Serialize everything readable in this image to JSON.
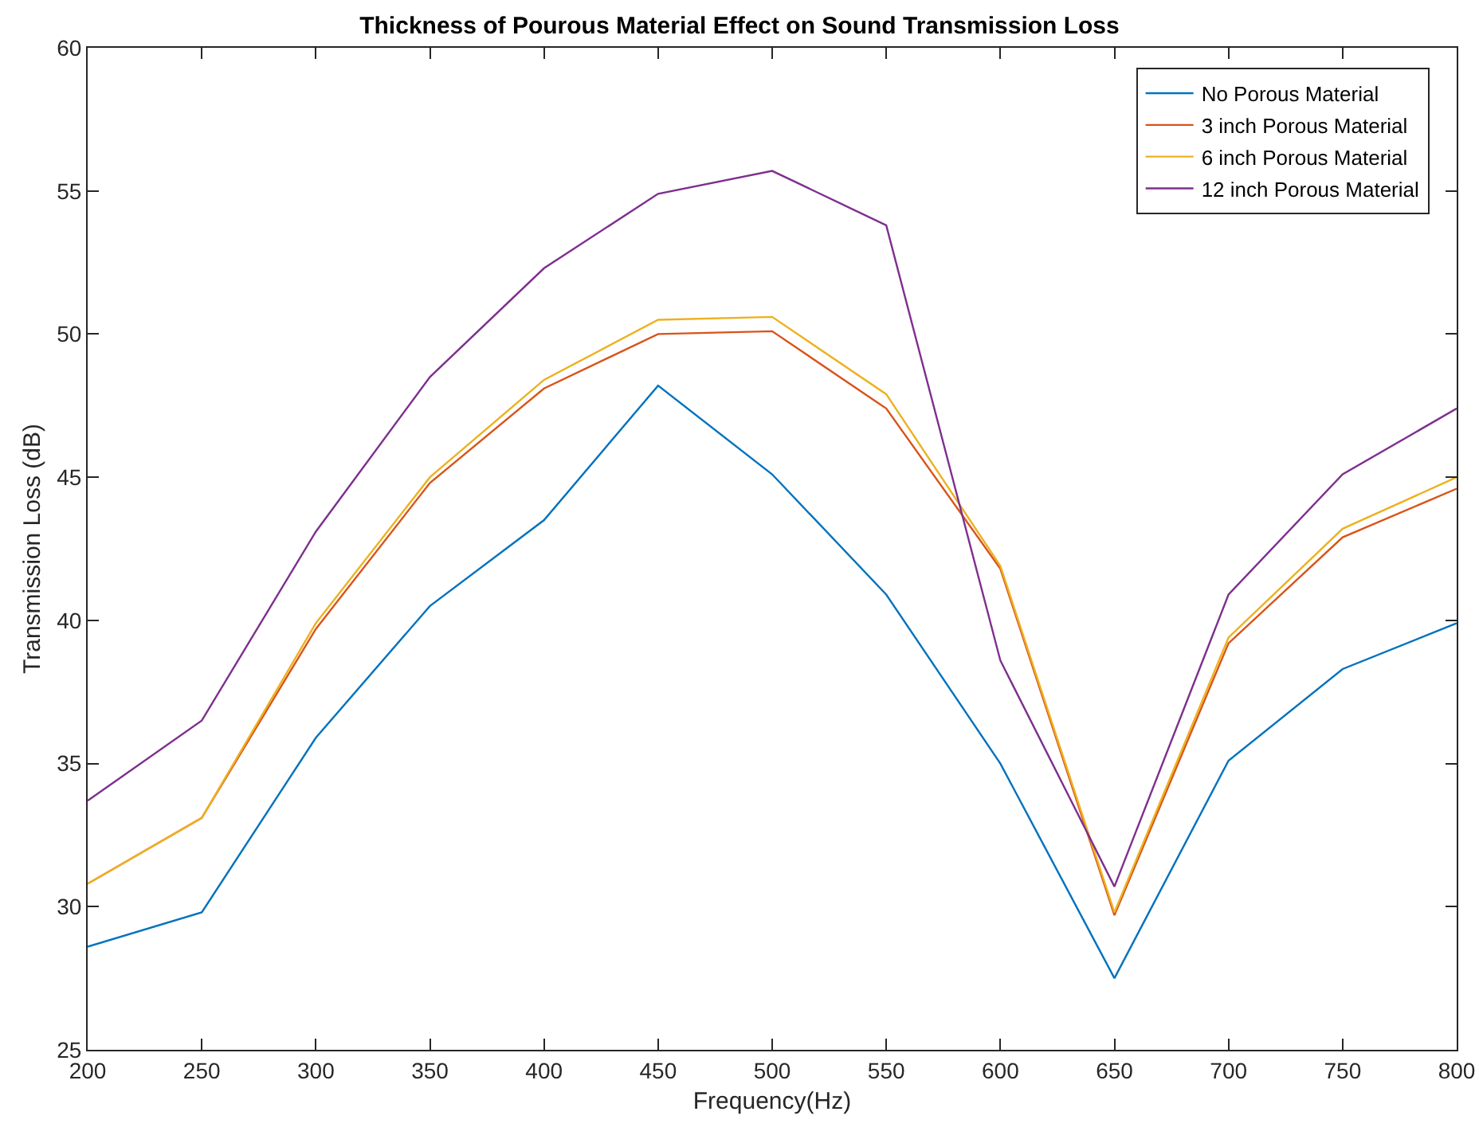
{
  "chart_data": {
    "type": "line",
    "title": "Thickness of Pourous Material Effect on Sound Transmission Loss",
    "xlabel": "Frequency(Hz)",
    "ylabel": "Transmission Loss (dB)",
    "x": [
      200,
      250,
      300,
      350,
      400,
      450,
      500,
      550,
      600,
      650,
      700,
      750,
      800
    ],
    "series": [
      {
        "name": "No Porous Material",
        "color": "#0072bd",
        "values": [
          28.6,
          29.8,
          35.9,
          40.5,
          43.5,
          48.2,
          45.1,
          40.9,
          35.0,
          27.5,
          35.1,
          38.3,
          39.9
        ]
      },
      {
        "name": "3 inch Porous Material",
        "color": "#d95319",
        "values": [
          30.8,
          33.1,
          39.7,
          44.8,
          48.1,
          50.0,
          50.1,
          47.4,
          41.8,
          29.7,
          39.2,
          42.9,
          44.6
        ]
      },
      {
        "name": "6 inch Porous Material",
        "color": "#edb120",
        "values": [
          30.8,
          33.1,
          39.9,
          45.0,
          48.4,
          50.5,
          50.6,
          47.9,
          41.9,
          29.8,
          39.4,
          43.2,
          45.0
        ]
      },
      {
        "name": "12 inch Porous Material",
        "color": "#7e2f8e",
        "values": [
          33.7,
          36.5,
          43.1,
          48.5,
          52.3,
          54.9,
          55.7,
          53.8,
          38.6,
          30.7,
          40.9,
          45.1,
          47.4
        ]
      }
    ],
    "xlim": [
      200,
      800
    ],
    "xticks": [
      200,
      250,
      300,
      350,
      400,
      450,
      500,
      550,
      600,
      650,
      700,
      750,
      800
    ],
    "ylim": [
      25,
      60
    ],
    "yticks": [
      25,
      30,
      35,
      40,
      45,
      50,
      55,
      60
    ],
    "grid": false,
    "legend": "top right",
    "marker": "none",
    "line_style": "solid"
  }
}
